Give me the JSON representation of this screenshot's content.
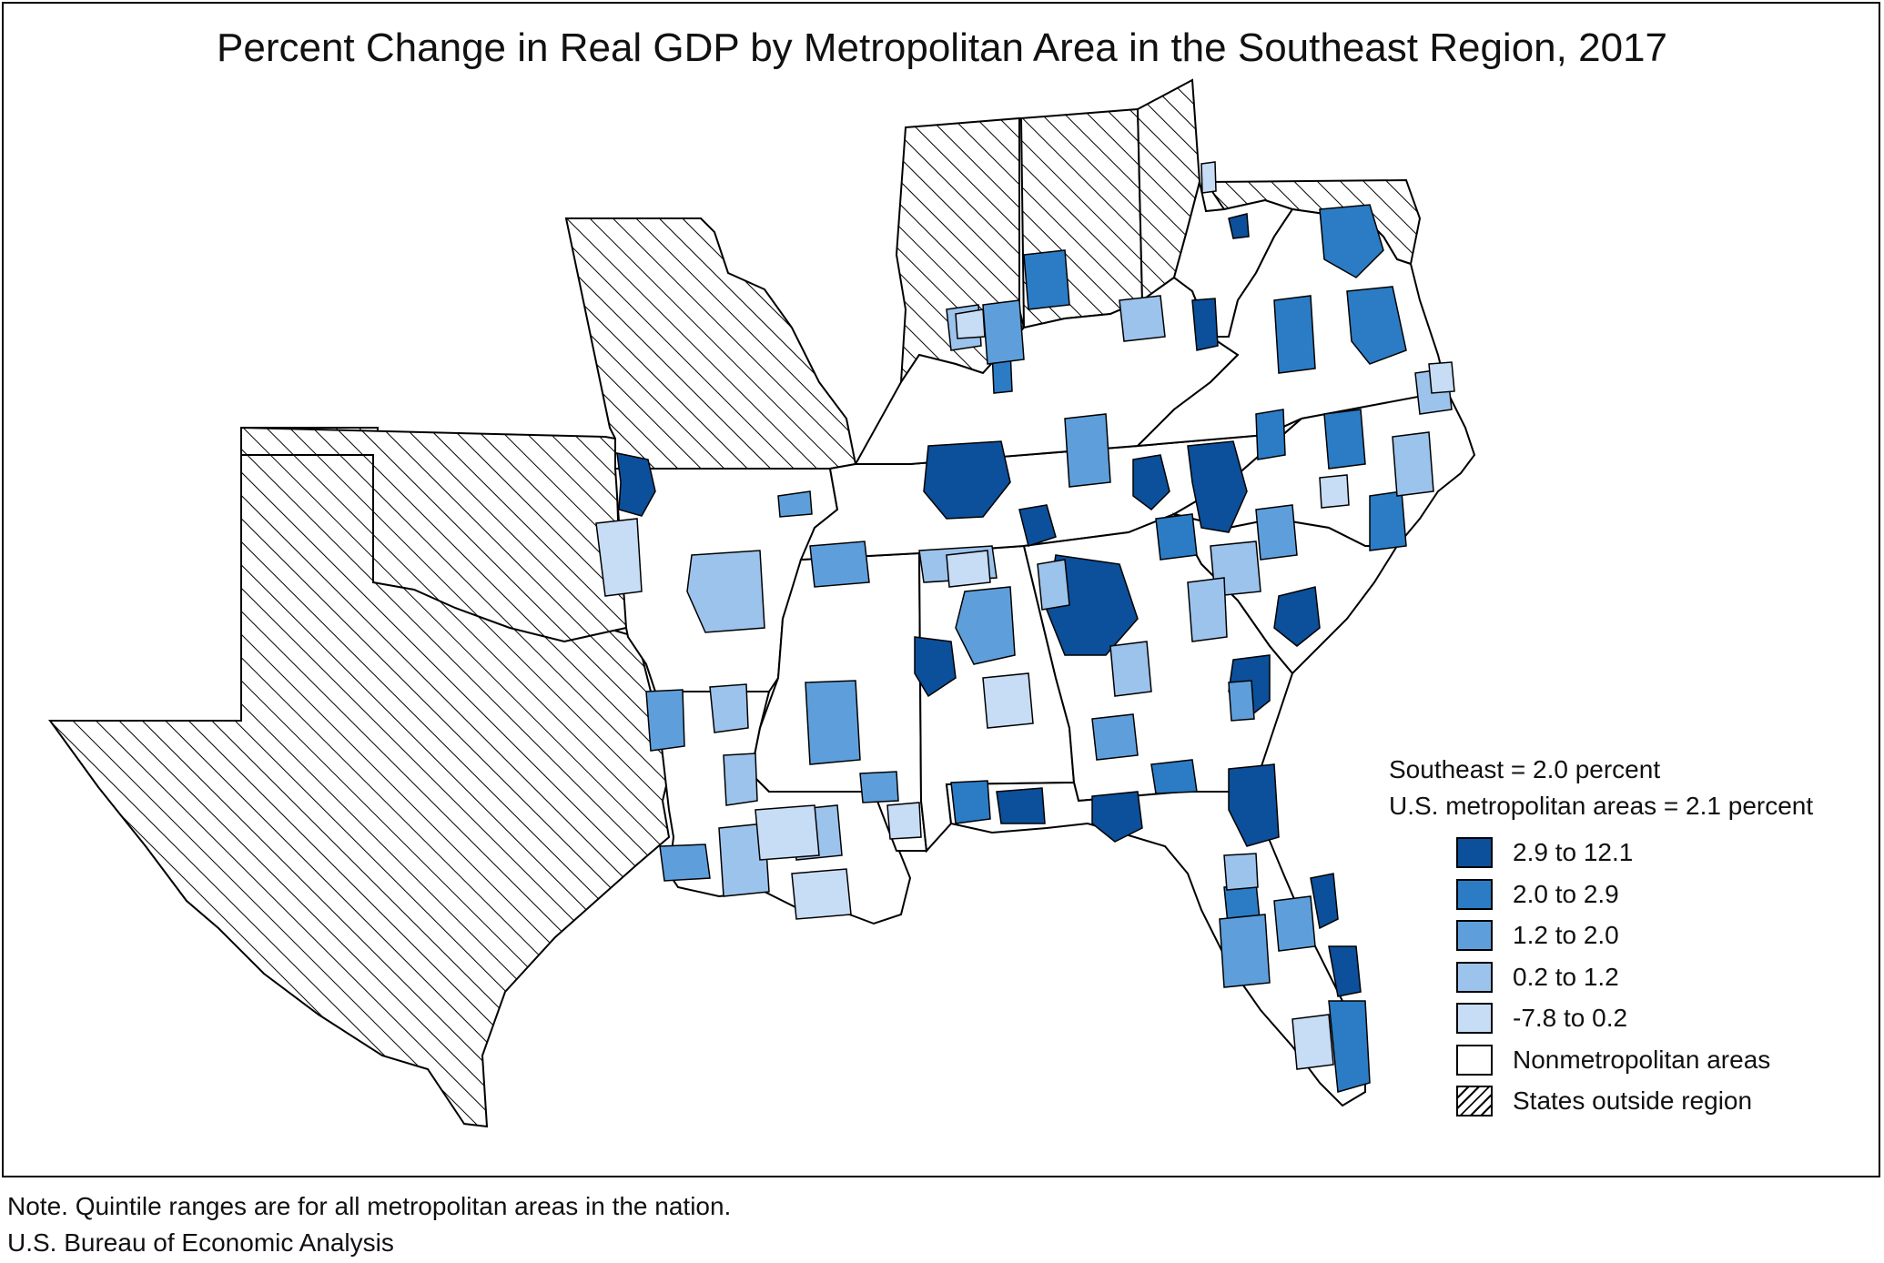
{
  "title": "Percent Change in Real GDP by Metropolitan Area in the Southeast Region, 2017",
  "summary": {
    "southeast": "Southeast = 2.0 percent",
    "us_metro": "U.S. metropolitan areas = 2.1 percent"
  },
  "legend": [
    {
      "label": "2.9 to 12.1",
      "color": "#0c4f9a",
      "hatched": false
    },
    {
      "label": "2.0 to 2.9",
      "color": "#2b7cc4",
      "hatched": false
    },
    {
      "label": "1.2 to 2.0",
      "color": "#5e9fdb",
      "hatched": false
    },
    {
      "label": "0.2 to 1.2",
      "color": "#9cc3ec",
      "hatched": false
    },
    {
      "label": "-7.8 to 0.2",
      "color": "#c7dcf5",
      "hatched": false
    },
    {
      "label": "Nonmetropolitan areas",
      "color": "#ffffff",
      "hatched": false
    },
    {
      "label": "States outside region",
      "color": "#ffffff",
      "hatched": true
    }
  ],
  "footer": {
    "note": "Note. Quintile ranges are for all metropolitan areas in the nation.",
    "source": "U.S. Bureau of Economic Analysis"
  }
}
